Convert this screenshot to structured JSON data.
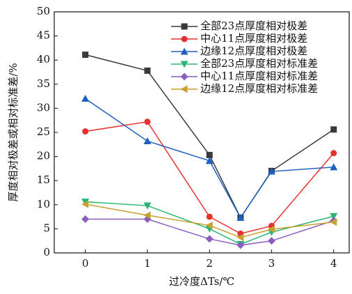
{
  "chart_data": {
    "type": "line",
    "x_label": "过冷度ΔTs/℃",
    "y_label": "厚度相对极差或相对标准差/%",
    "x": [
      0,
      1,
      2,
      2.5,
      3,
      4
    ],
    "xlim": [
      -0.5,
      4.25
    ],
    "xticks": [
      0,
      1,
      2,
      3,
      4
    ],
    "ylim": [
      0,
      50
    ],
    "yticks": [
      0,
      5,
      10,
      15,
      20,
      25,
      30,
      35,
      40,
      45,
      50
    ],
    "series": [
      {
        "name": "全部23点厚度相对极差",
        "color": "#3a3a3a",
        "marker": "square",
        "values": [
          41.1,
          37.8,
          20.3,
          7.3,
          17.0,
          25.6
        ]
      },
      {
        "name": "中心11点厚度相对极差",
        "color": "#e8312f",
        "marker": "circle",
        "values": [
          25.2,
          27.2,
          7.5,
          4.0,
          5.6,
          20.7
        ]
      },
      {
        "name": "边缘12点厚度相对极差",
        "color": "#1f5fbf",
        "marker": "triangle-up",
        "values": [
          32.0,
          23.2,
          19.1,
          7.3,
          16.9,
          17.8
        ]
      },
      {
        "name": "全部23点厚度相对标准差",
        "color": "#2bb673",
        "marker": "triangle-down",
        "values": [
          10.6,
          9.8,
          5.0,
          1.8,
          4.3,
          7.6
        ]
      },
      {
        "name": "中心11点厚度相对标准差",
        "color": "#8b5fbf",
        "marker": "diamond",
        "values": [
          7.0,
          7.0,
          2.9,
          1.6,
          2.5,
          6.7
        ]
      },
      {
        "name": "边缘12点厚度相对标准差",
        "color": "#c8a02c",
        "marker": "triangle-left",
        "values": [
          10.1,
          7.8,
          5.7,
          3.2,
          4.9,
          6.4
        ]
      }
    ]
  }
}
